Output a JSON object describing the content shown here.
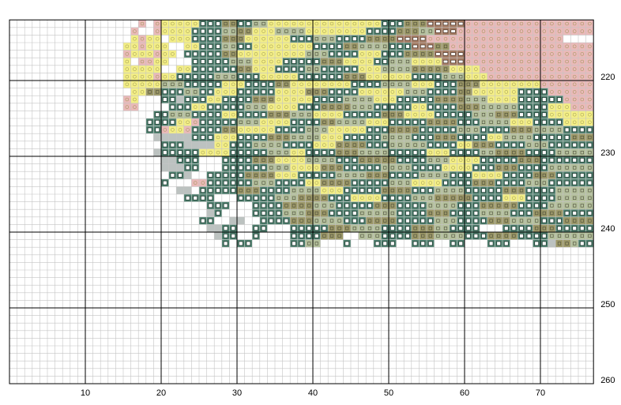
{
  "chart_data": {
    "type": "stitch-grid",
    "xlim": [
      0,
      77
    ],
    "ylim": [
      212,
      260
    ],
    "xticks": [
      10,
      20,
      30,
      40,
      50,
      60,
      70
    ],
    "yticks": [
      220,
      230,
      240,
      250,
      260
    ],
    "minor_color": "#c4c4c4",
    "major_color": "#000000",
    "palette": {
      "y": "#f3ee86",
      "g": "#4f8270",
      "o": "#9c9868",
      "s": "#b4c09c",
      "p": "#eab9b9",
      "b": "#a47a62",
      "l": "#bcc2c0"
    },
    "rows": [
      "17. 1p 1. 1p 5y 3g 2o 2g 2s 15y 3g 3o 5b 17p",
      "16. 1p 2. 1p 4y 4g 2s 2o 3y 4s 8y 4g 3o 2s 3b 18p",
      "16. 1y 1p 2y 1. 3y 4g 3o 6y 3g 3s 4g 4o 4b 18p",
      "15. 2y 1p 3y 2. 2y 3g 2s 2g 8y 4g 2o 4s 3g 3b 2o 19p",
      "15. 1p 3y 1p 2y 1. 1g 4g 2o 9y 3s 4g 3y 3g 4o 4b 17p",
      "15. 1y 1. 2p 2y 3. 5g 3s 4y 5g 3o 4y 2g 3s 4y 3b 17p",
      "15. 5y 2. 2y 6g 2o 3y 4g 2s 5g 3y 4s 5o 4y 15p",
      "15. 4y 1p 2y 5g 3s 3g 5y 6g 3o 6y 4g 3s 3y 14p",
      "15. 5y 3s 5g 3y 4g 2o 8y 4g 4s 3y 3g 3o 8y 7p",
      "16. 2y 2o 3g 2s 2g 3y 5g 4y 3o 4g 6y 3s 4g 2o 6y 4g 6p",
      "15. 1p 1y 3. 2g 1l 3g 2y 4g 3o 5y 4g 4s 3y 5g 4o 3s 4y 6g 4p",
      "15. 1p 1p 4. 3g 2y 5g 3s 4y 3g 4o 3s 5g 2y 4g 3o 5s 4g 3y 3p",
      "19. 2g 3s 4g 2y 4g 3o 3s 4y 5g 3o 4y 5g 3s 3o 4g 6y",
      "18. 4g 2y 1p 5g 3s 4y 4g 2o 4s 3y 5g 4o 3g 4s 3y 4g 4y",
      "18. 2g 1p 2y 1p 4g 2o 5y 4g 3s 5y 3g 4o 5g 3s 4g 3o 4s 4g",
      "19. 5l 3g 3y 4g 3o 4s 3y 5g 4s 3g 3o 4g 2y 4s 5g 3o",
      "20. 3g 4l 2y 3g 4s 4g 3y 4o 3g 5s 4g 2y 3o 4g 3s 6g",
      "19. 1l 5g 4y 5g 3s 2y 4g 3o 4s 5g 3y 4g 2s 4o 4g 5s",
      "20. 2l 3g 3. 4g 3o 4y 4s 3g 5o 4g 3s 4y 5g 3o 7g",
      "20. 3l 2g 3. 6g 3s 4y 3o 5g 4s 4g 4y 3g 3o 4g 6s",
      "21. 2g 1l 2. 5g 4o 3y 5g 4s 3o 4g 4s 3g 4y 4g 3o 5g",
      "20. 1g 3. 2p 6g 3s 4g 2y 4o 5g 3s 4y 4g 3o 4g 3s 6g",
      "21. 1. 2l 1. 5g 3o 4g 4s 3y 5g 4o 3g 4s 5g 3o 4g 5s",
      "23. 4g 3. 5g 3s 4o 3g 4y 4g 3s 5o 4g 3y 4g 5s",
      "26. 3g 3. 4g 4o 3s 5g 3o 4g 4s 3g 5o 4g 6s",
      "26. 1l 1g 4. 4g 3s 3o 4g 5s 4g 3o 4g 4s 3g 4o 4g",
      "25. 2g 2. 2l 2. 4g 3o 4s 3g 4o 5g 3s 4g 3o 4s 3g 4o",
      "26. 2l 2g 2. 2g 3. 5g 3o 4s 4g 3o 2s 4g 3. 4g 3o 5g",
      "27. 1l 2g 2. 1g 4. 4g 3o 2. 3s 4g 3o 4s 3g 4o 4g 6s",
      "28. 1g 1. 2g 5. 2g 2s 3. 1g 3. 3g 2. 3g 2. 2g 3. 3g 3. 2g 1l 2o 1s 2g"
    ]
  }
}
